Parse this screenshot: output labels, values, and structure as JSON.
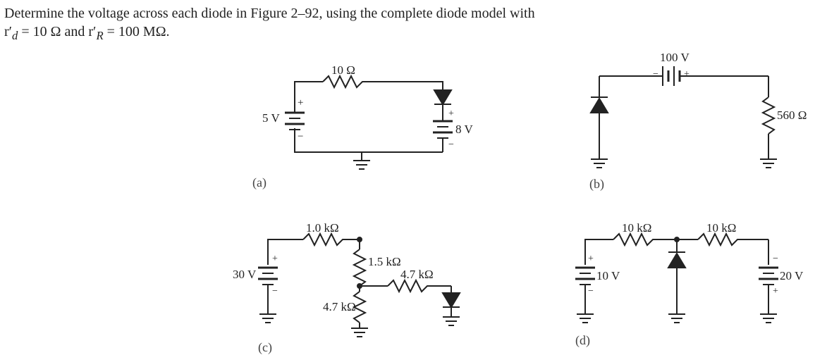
{
  "problem": {
    "line1": "Determine the voltage across each diode in Figure 2–92, using the complete diode model with",
    "line2_html": "r′<span class='sub'><sub>d</sub></span> = 10 Ω and r′<span class='sub'><sub>R</sub></span> = 100 MΩ."
  },
  "circuits": {
    "a": {
      "caption": "(a)",
      "source_v": "5 V",
      "r_top": "10 Ω",
      "source2": "8 V"
    },
    "b": {
      "caption": "(b)",
      "source_top": "100 V",
      "r_right": "560 Ω"
    },
    "c": {
      "caption": "(c)",
      "source_v": "30 V",
      "r_top": "1.0 kΩ",
      "r_mid": "1.5 kΩ",
      "r_mid2": "4.7 kΩ",
      "r_bot": "4.7 kΩ"
    },
    "d": {
      "caption": "(d)",
      "source_left": "10 V",
      "source_right": "20 V",
      "r_left": "10 kΩ",
      "r_right": "10 kΩ"
    }
  },
  "style": {
    "stroke": "#222222",
    "stroke_width": 2,
    "fill_black": "#222222",
    "fill_none": "none",
    "bg": "#ffffff"
  }
}
